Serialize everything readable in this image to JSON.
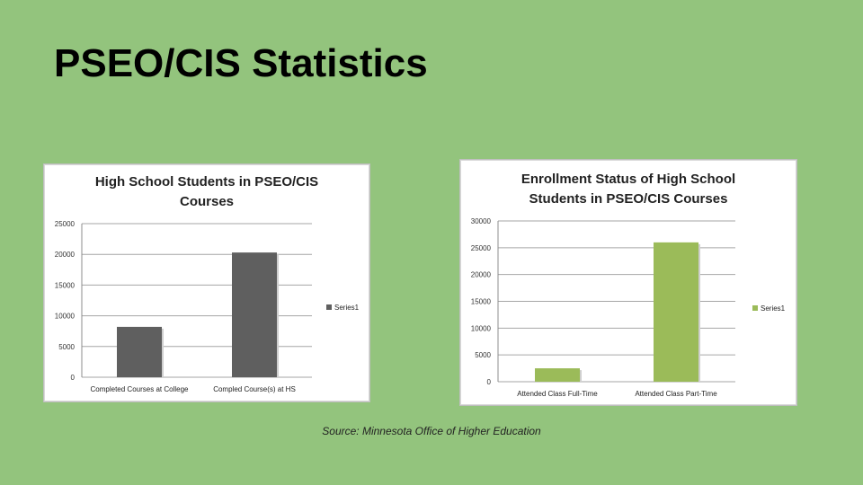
{
  "slide": {
    "title": "PSEO/CIS Statistics",
    "source": "Source: Minnesota Office of Higher Education",
    "background": "#93c47d"
  },
  "chart_data": [
    {
      "type": "bar",
      "title_lines": [
        "High School Students in PSEO/CIS",
        "Courses"
      ],
      "categories": [
        "Completed  Courses at College",
        "Compled Course(s) at HS"
      ],
      "series": [
        {
          "name": "Series1",
          "values": [
            8200,
            20300
          ],
          "color": "#5f5f5f"
        }
      ],
      "ylim": [
        0,
        25000
      ],
      "yticks": [
        0,
        5000,
        10000,
        15000,
        20000,
        25000
      ],
      "grid": true,
      "legend": "right"
    },
    {
      "type": "bar",
      "title_lines": [
        "Enrollment Status of High School",
        "Students in PSEO/CIS Courses"
      ],
      "categories": [
        "Attended Class Full-Time",
        "Attended Class Part-Time"
      ],
      "series": [
        {
          "name": "Series1",
          "values": [
            2500,
            26000
          ],
          "color": "#9bbb59"
        }
      ],
      "ylim": [
        0,
        30000
      ],
      "yticks": [
        0,
        5000,
        10000,
        15000,
        20000,
        25000,
        30000
      ],
      "grid": true,
      "legend": "right"
    }
  ]
}
